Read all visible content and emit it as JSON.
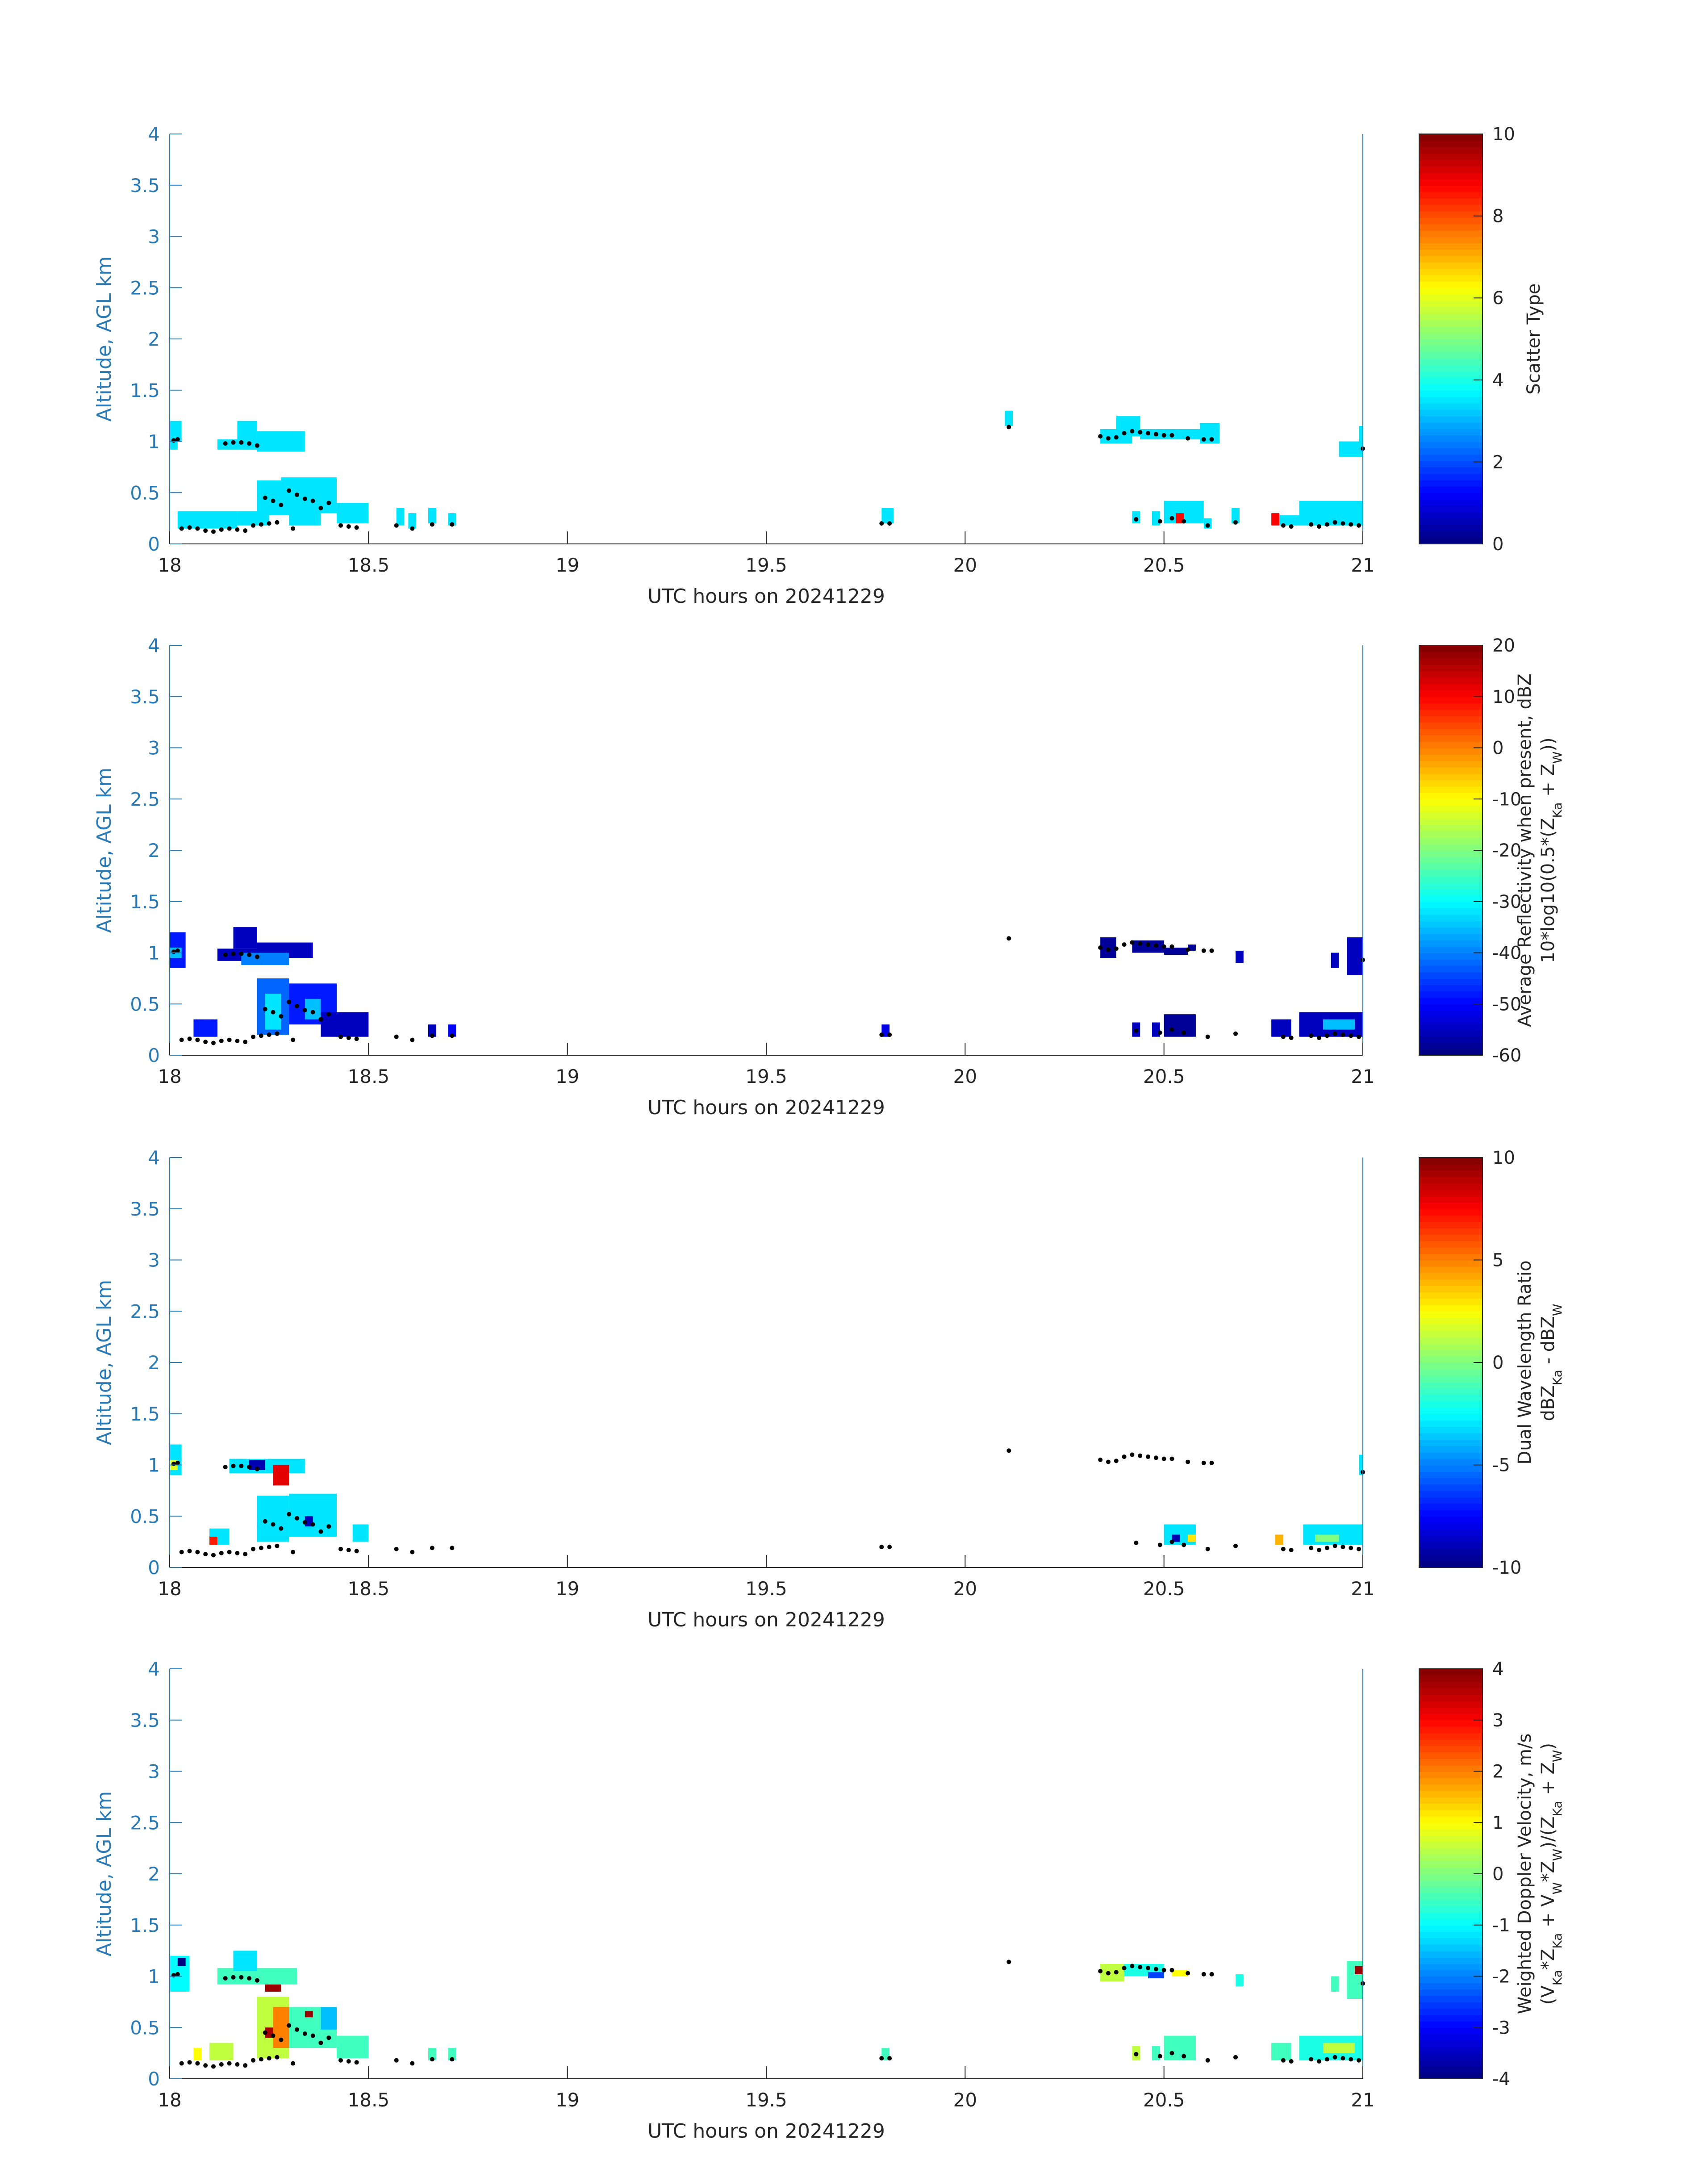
{
  "figure": {
    "colors": {
      "axis": "#2a7ab5",
      "text": "#262626",
      "marker": "#000000"
    },
    "colormap": "jet"
  },
  "chart_data": [
    {
      "type": "heatmap",
      "panel": 1,
      "xlabel": "UTC hours on 20241229",
      "ylabel": "Altitude, AGL km",
      "xlim": [
        18,
        21
      ],
      "ylim": [
        0,
        4
      ],
      "xticks": [
        "18",
        "18.5",
        "19",
        "19.5",
        "20",
        "20.5",
        "21"
      ],
      "yticks": [
        "0",
        "0.5",
        "1",
        "1.5",
        "2",
        "2.5",
        "3",
        "3.5",
        "4"
      ],
      "colorbar": {
        "label": [
          "Scatter Type"
        ],
        "min": 0,
        "max": 10,
        "ticks": [
          "0",
          "2",
          "4",
          "6",
          "8",
          "10"
        ]
      },
      "cells": [
        [
          18.0,
          18.03,
          1.0,
          1.2,
          3.5
        ],
        [
          18.0,
          18.02,
          0.92,
          1.0,
          3.5
        ],
        [
          18.02,
          18.17,
          0.15,
          0.32,
          3.5
        ],
        [
          18.17,
          18.25,
          0.18,
          0.32,
          3.5
        ],
        [
          18.12,
          18.28,
          0.92,
          1.02,
          3.5
        ],
        [
          18.17,
          18.22,
          1.0,
          1.2,
          3.5
        ],
        [
          18.22,
          18.34,
          0.9,
          1.1,
          3.5
        ],
        [
          18.22,
          18.3,
          0.28,
          0.62,
          3.5
        ],
        [
          18.28,
          18.42,
          0.3,
          0.65,
          3.5
        ],
        [
          18.3,
          18.38,
          0.18,
          0.35,
          3.5
        ],
        [
          18.42,
          18.5,
          0.2,
          0.4,
          3.5
        ],
        [
          18.57,
          18.59,
          0.18,
          0.35,
          3.5
        ],
        [
          18.6,
          18.62,
          0.15,
          0.3,
          3.5
        ],
        [
          18.65,
          18.67,
          0.2,
          0.35,
          3.5
        ],
        [
          18.7,
          18.72,
          0.18,
          0.3,
          3.5
        ],
        [
          19.79,
          19.82,
          0.2,
          0.35,
          3.5
        ],
        [
          20.1,
          20.12,
          1.15,
          1.3,
          3.5
        ],
        [
          20.34,
          20.42,
          0.98,
          1.12,
          3.5
        ],
        [
          20.38,
          20.44,
          1.05,
          1.25,
          3.5
        ],
        [
          20.44,
          20.6,
          1.02,
          1.12,
          3.5
        ],
        [
          20.59,
          20.64,
          0.98,
          1.18,
          3.5
        ],
        [
          20.42,
          20.44,
          0.2,
          0.32,
          3.5
        ],
        [
          20.47,
          20.49,
          0.18,
          0.32,
          3.5
        ],
        [
          20.5,
          20.6,
          0.2,
          0.42,
          3.5
        ],
        [
          20.53,
          20.55,
          0.2,
          0.3,
          8.7
        ],
        [
          20.6,
          20.62,
          0.15,
          0.25,
          3.5
        ],
        [
          20.67,
          20.69,
          0.2,
          0.35,
          3.5
        ],
        [
          20.77,
          20.79,
          0.18,
          0.3,
          8.8
        ],
        [
          20.79,
          20.84,
          0.18,
          0.28,
          3.5
        ],
        [
          20.84,
          21.0,
          0.18,
          0.42,
          3.5
        ],
        [
          20.94,
          21.0,
          0.85,
          1.0,
          3.5
        ],
        [
          20.99,
          21.0,
          0.85,
          1.15,
          3.5
        ]
      ]
    },
    {
      "type": "heatmap",
      "panel": 2,
      "xlabel": "UTC hours on 20241229",
      "ylabel": "Altitude, AGL km",
      "xlim": [
        18,
        21
      ],
      "ylim": [
        0,
        4
      ],
      "xticks": [
        "18",
        "18.5",
        "19",
        "19.5",
        "20",
        "20.5",
        "21"
      ],
      "yticks": [
        "0",
        "0.5",
        "1",
        "1.5",
        "2",
        "2.5",
        "3",
        "3.5",
        "4"
      ],
      "colorbar": {
        "label": [
          "Average Reflectivity when present, dBZ",
          "10*log10(0.5*(Z_Ka + Z_W))"
        ],
        "min": -60,
        "max": 20,
        "ticks": [
          "-60",
          "-50",
          "-40",
          "-30",
          "-20",
          "-10",
          "0",
          "10",
          "20"
        ]
      },
      "cells": [
        [
          18.0,
          18.04,
          0.85,
          1.2,
          -48
        ],
        [
          18.0,
          18.03,
          0.95,
          1.05,
          -35
        ],
        [
          18.06,
          18.12,
          0.18,
          0.35,
          -48
        ],
        [
          18.12,
          18.28,
          0.92,
          1.04,
          -55
        ],
        [
          18.16,
          18.22,
          1.04,
          1.25,
          -55
        ],
        [
          18.22,
          18.36,
          0.95,
          1.1,
          -55
        ],
        [
          18.18,
          18.3,
          0.88,
          1.0,
          -40
        ],
        [
          18.22,
          18.3,
          0.2,
          0.75,
          -42
        ],
        [
          18.24,
          18.28,
          0.25,
          0.6,
          -32
        ],
        [
          18.3,
          18.42,
          0.3,
          0.7,
          -48
        ],
        [
          18.34,
          18.38,
          0.35,
          0.55,
          -35
        ],
        [
          18.38,
          18.5,
          0.18,
          0.42,
          -55
        ],
        [
          18.65,
          18.67,
          0.18,
          0.3,
          -55
        ],
        [
          18.7,
          18.72,
          0.18,
          0.3,
          -50
        ],
        [
          19.79,
          19.81,
          0.18,
          0.3,
          -52
        ],
        [
          20.34,
          20.38,
          0.95,
          1.15,
          -58
        ],
        [
          20.42,
          20.5,
          1.0,
          1.12,
          -58
        ],
        [
          20.5,
          20.56,
          0.98,
          1.05,
          -58
        ],
        [
          20.56,
          20.58,
          1.02,
          1.08,
          -58
        ],
        [
          20.68,
          20.7,
          0.9,
          1.02,
          -55
        ],
        [
          20.42,
          20.44,
          0.18,
          0.32,
          -55
        ],
        [
          20.47,
          20.49,
          0.18,
          0.32,
          -55
        ],
        [
          20.5,
          20.58,
          0.18,
          0.4,
          -58
        ],
        [
          20.77,
          20.82,
          0.18,
          0.35,
          -55
        ],
        [
          20.84,
          21.0,
          0.18,
          0.42,
          -55
        ],
        [
          20.9,
          20.98,
          0.25,
          0.35,
          -35
        ],
        [
          20.92,
          20.94,
          0.85,
          1.0,
          -55
        ],
        [
          20.96,
          21.0,
          0.78,
          1.15,
          -55
        ]
      ]
    },
    {
      "type": "heatmap",
      "panel": 3,
      "xlabel": "UTC hours on 20241229",
      "ylabel": "Altitude, AGL km",
      "xlim": [
        18,
        21
      ],
      "ylim": [
        0,
        4
      ],
      "xticks": [
        "18",
        "18.5",
        "19",
        "19.5",
        "20",
        "20.5",
        "21"
      ],
      "yticks": [
        "0",
        "0.5",
        "1",
        "1.5",
        "2",
        "2.5",
        "3",
        "3.5",
        "4"
      ],
      "colorbar": {
        "label": [
          "Dual Wavelength Ratio",
          "dBZ_Ka - dBZ_W"
        ],
        "min": -10,
        "max": 10,
        "ticks": [
          "-10",
          "-5",
          "0",
          "5",
          "10"
        ]
      },
      "cells": [
        [
          18.0,
          18.03,
          0.9,
          1.2,
          -3
        ],
        [
          18.0,
          18.02,
          0.95,
          1.05,
          2
        ],
        [
          18.1,
          18.15,
          0.22,
          0.38,
          -3
        ],
        [
          18.1,
          18.12,
          0.22,
          0.3,
          7
        ],
        [
          18.15,
          18.34,
          0.92,
          1.06,
          -3
        ],
        [
          18.2,
          18.24,
          0.95,
          1.05,
          -9
        ],
        [
          18.26,
          18.3,
          0.8,
          1.0,
          8
        ],
        [
          18.22,
          18.3,
          0.25,
          0.7,
          -3
        ],
        [
          18.3,
          18.42,
          0.3,
          0.72,
          -3
        ],
        [
          18.34,
          18.36,
          0.4,
          0.5,
          -9
        ],
        [
          18.46,
          18.5,
          0.25,
          0.42,
          -3
        ],
        [
          20.5,
          20.58,
          0.22,
          0.42,
          -3
        ],
        [
          20.52,
          20.54,
          0.25,
          0.32,
          -9
        ],
        [
          20.56,
          20.58,
          0.25,
          0.32,
          3
        ],
        [
          20.78,
          20.8,
          0.22,
          0.32,
          4
        ],
        [
          20.85,
          21.0,
          0.22,
          0.42,
          -3
        ],
        [
          20.88,
          20.94,
          0.25,
          0.32,
          0
        ],
        [
          20.99,
          21.0,
          0.9,
          1.1,
          -3
        ]
      ]
    },
    {
      "type": "heatmap",
      "panel": 4,
      "xlabel": "UTC hours on 20241229",
      "ylabel": "Altitude, AGL km",
      "xlim": [
        18,
        21
      ],
      "ylim": [
        0,
        4
      ],
      "xticks": [
        "18",
        "18.5",
        "19",
        "19.5",
        "20",
        "20.5",
        "21"
      ],
      "yticks": [
        "0",
        "0.5",
        "1",
        "1.5",
        "2",
        "2.5",
        "3",
        "3.5",
        "4"
      ],
      "colorbar": {
        "label": [
          "Weighted Doppler Velocity, m/s",
          "(V_Ka*Z_Ka + V_W*Z_W)/(Z_Ka + Z_W)"
        ],
        "min": -4,
        "max": 4,
        "ticks": [
          "-4",
          "-3",
          "-2",
          "-1",
          "0",
          "1",
          "2",
          "3",
          "4"
        ]
      },
      "cells": [
        [
          18.0,
          18.05,
          0.85,
          1.2,
          -1
        ],
        [
          18.02,
          18.04,
          1.1,
          1.18,
          -4
        ],
        [
          18.06,
          18.08,
          0.18,
          0.3,
          1
        ],
        [
          18.1,
          18.16,
          0.18,
          0.35,
          0.5
        ],
        [
          18.12,
          18.32,
          0.92,
          1.08,
          -0.5
        ],
        [
          18.16,
          18.22,
          1.05,
          1.25,
          -1.2
        ],
        [
          18.24,
          18.28,
          0.85,
          0.92,
          3.8
        ],
        [
          18.22,
          18.3,
          0.2,
          0.8,
          0.5
        ],
        [
          18.26,
          18.3,
          0.3,
          0.7,
          2
        ],
        [
          18.24,
          18.26,
          0.4,
          0.5,
          3.7
        ],
        [
          18.3,
          18.42,
          0.3,
          0.7,
          -0.5
        ],
        [
          18.34,
          18.36,
          0.6,
          0.66,
          3.8
        ],
        [
          18.38,
          18.42,
          0.48,
          0.7,
          -1.5
        ],
        [
          18.42,
          18.5,
          0.2,
          0.42,
          -0.5
        ],
        [
          18.65,
          18.67,
          0.18,
          0.3,
          -0.5
        ],
        [
          18.7,
          18.72,
          0.18,
          0.3,
          -0.5
        ],
        [
          19.79,
          19.81,
          0.18,
          0.3,
          -0.5
        ],
        [
          20.34,
          20.4,
          0.95,
          1.12,
          0.5
        ],
        [
          20.4,
          20.5,
          1.0,
          1.12,
          -0.8
        ],
        [
          20.46,
          20.5,
          0.98,
          1.04,
          -2.5
        ],
        [
          20.52,
          20.56,
          1.0,
          1.06,
          1
        ],
        [
          20.68,
          20.7,
          0.9,
          1.02,
          -0.8
        ],
        [
          20.42,
          20.44,
          0.18,
          0.32,
          0.5
        ],
        [
          20.47,
          20.49,
          0.18,
          0.32,
          -0.5
        ],
        [
          20.5,
          20.58,
          0.18,
          0.42,
          -0.5
        ],
        [
          20.77,
          20.82,
          0.18,
          0.35,
          -0.5
        ],
        [
          20.84,
          21.0,
          0.18,
          0.42,
          -0.8
        ],
        [
          20.9,
          20.98,
          0.25,
          0.35,
          0.5
        ],
        [
          20.92,
          20.94,
          0.85,
          1.0,
          -0.5
        ],
        [
          20.96,
          21.0,
          0.78,
          1.15,
          -0.5
        ],
        [
          20.98,
          21.0,
          1.02,
          1.1,
          3.8
        ]
      ]
    }
  ],
  "markers": {
    "lower": [
      [
        18.03,
        0.15
      ],
      [
        18.05,
        0.16
      ],
      [
        18.07,
        0.15
      ],
      [
        18.09,
        0.13
      ],
      [
        18.11,
        0.12
      ],
      [
        18.13,
        0.14
      ],
      [
        18.15,
        0.15
      ],
      [
        18.17,
        0.14
      ],
      [
        18.19,
        0.13
      ],
      [
        18.21,
        0.18
      ],
      [
        18.23,
        0.19
      ],
      [
        18.25,
        0.2
      ],
      [
        18.27,
        0.21
      ],
      [
        18.31,
        0.15
      ],
      [
        18.43,
        0.18
      ],
      [
        18.45,
        0.17
      ],
      [
        18.47,
        0.16
      ],
      [
        18.57,
        0.18
      ],
      [
        18.61,
        0.15
      ],
      [
        18.66,
        0.19
      ],
      [
        18.71,
        0.19
      ],
      [
        19.79,
        0.2
      ],
      [
        19.81,
        0.2
      ],
      [
        20.43,
        0.24
      ],
      [
        20.49,
        0.22
      ],
      [
        20.52,
        0.25
      ],
      [
        20.55,
        0.22
      ],
      [
        20.61,
        0.18
      ],
      [
        20.68,
        0.21
      ],
      [
        20.8,
        0.18
      ],
      [
        20.82,
        0.17
      ],
      [
        20.87,
        0.19
      ],
      [
        20.89,
        0.17
      ],
      [
        20.91,
        0.19
      ],
      [
        20.93,
        0.21
      ],
      [
        20.95,
        0.2
      ],
      [
        20.97,
        0.19
      ],
      [
        20.99,
        0.18
      ]
    ],
    "upper": [
      [
        18.01,
        1.01
      ],
      [
        18.02,
        1.02
      ],
      [
        18.14,
        0.98
      ],
      [
        18.16,
        0.99
      ],
      [
        18.18,
        0.99
      ],
      [
        18.2,
        0.98
      ],
      [
        18.22,
        0.96
      ],
      [
        18.24,
        0.45
      ],
      [
        18.26,
        0.42
      ],
      [
        18.28,
        0.38
      ],
      [
        18.3,
        0.52
      ],
      [
        18.32,
        0.48
      ],
      [
        18.34,
        0.44
      ],
      [
        18.36,
        0.42
      ],
      [
        18.38,
        0.35
      ],
      [
        18.4,
        0.4
      ],
      [
        20.11,
        1.14
      ],
      [
        20.34,
        1.05
      ],
      [
        20.36,
        1.03
      ],
      [
        20.38,
        1.04
      ],
      [
        20.4,
        1.08
      ],
      [
        20.42,
        1.1
      ],
      [
        20.44,
        1.09
      ],
      [
        20.46,
        1.08
      ],
      [
        20.48,
        1.07
      ],
      [
        20.5,
        1.06
      ],
      [
        20.52,
        1.06
      ],
      [
        20.56,
        1.03
      ],
      [
        20.6,
        1.02
      ],
      [
        20.62,
        1.02
      ],
      [
        21.0,
        0.93
      ]
    ]
  }
}
